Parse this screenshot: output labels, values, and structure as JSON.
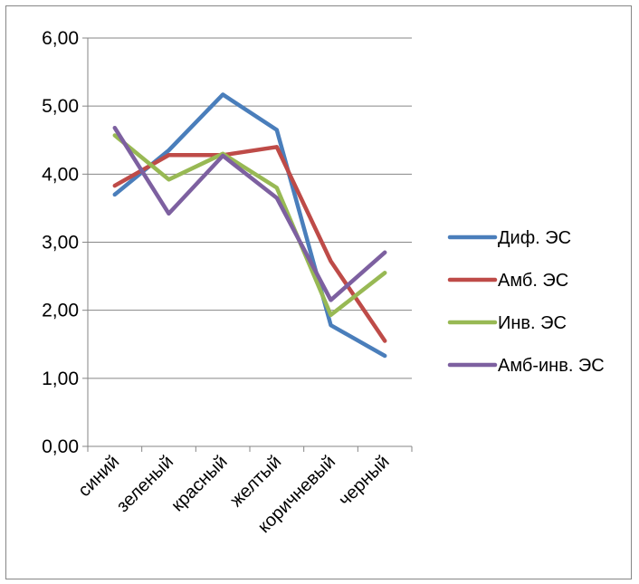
{
  "chart_data": {
    "type": "line",
    "categories": [
      "синий",
      "зеленый",
      "красный",
      "желтый",
      "коричневый",
      "черный"
    ],
    "yticks": [
      "0,00",
      "1,00",
      "2,00",
      "3,00",
      "4,00",
      "5,00",
      "6,00"
    ],
    "ylim": [
      0,
      6
    ],
    "grid": true,
    "legend_position": "right",
    "series": [
      {
        "name": "Диф. ЭС",
        "color": "#4A7EBB",
        "values": [
          3.7,
          4.35,
          5.17,
          4.65,
          1.78,
          1.33
        ]
      },
      {
        "name": "Амб. ЭС",
        "color": "#BE4B48",
        "values": [
          3.83,
          4.28,
          4.28,
          4.4,
          2.72,
          1.55
        ]
      },
      {
        "name": "Инв. ЭС",
        "color": "#98B954",
        "values": [
          4.57,
          3.92,
          4.3,
          3.8,
          1.93,
          2.55
        ]
      },
      {
        "name": "Амб-инв. ЭС",
        "color": "#7D60A0",
        "values": [
          4.68,
          3.42,
          4.27,
          3.65,
          2.15,
          2.85
        ]
      }
    ]
  }
}
